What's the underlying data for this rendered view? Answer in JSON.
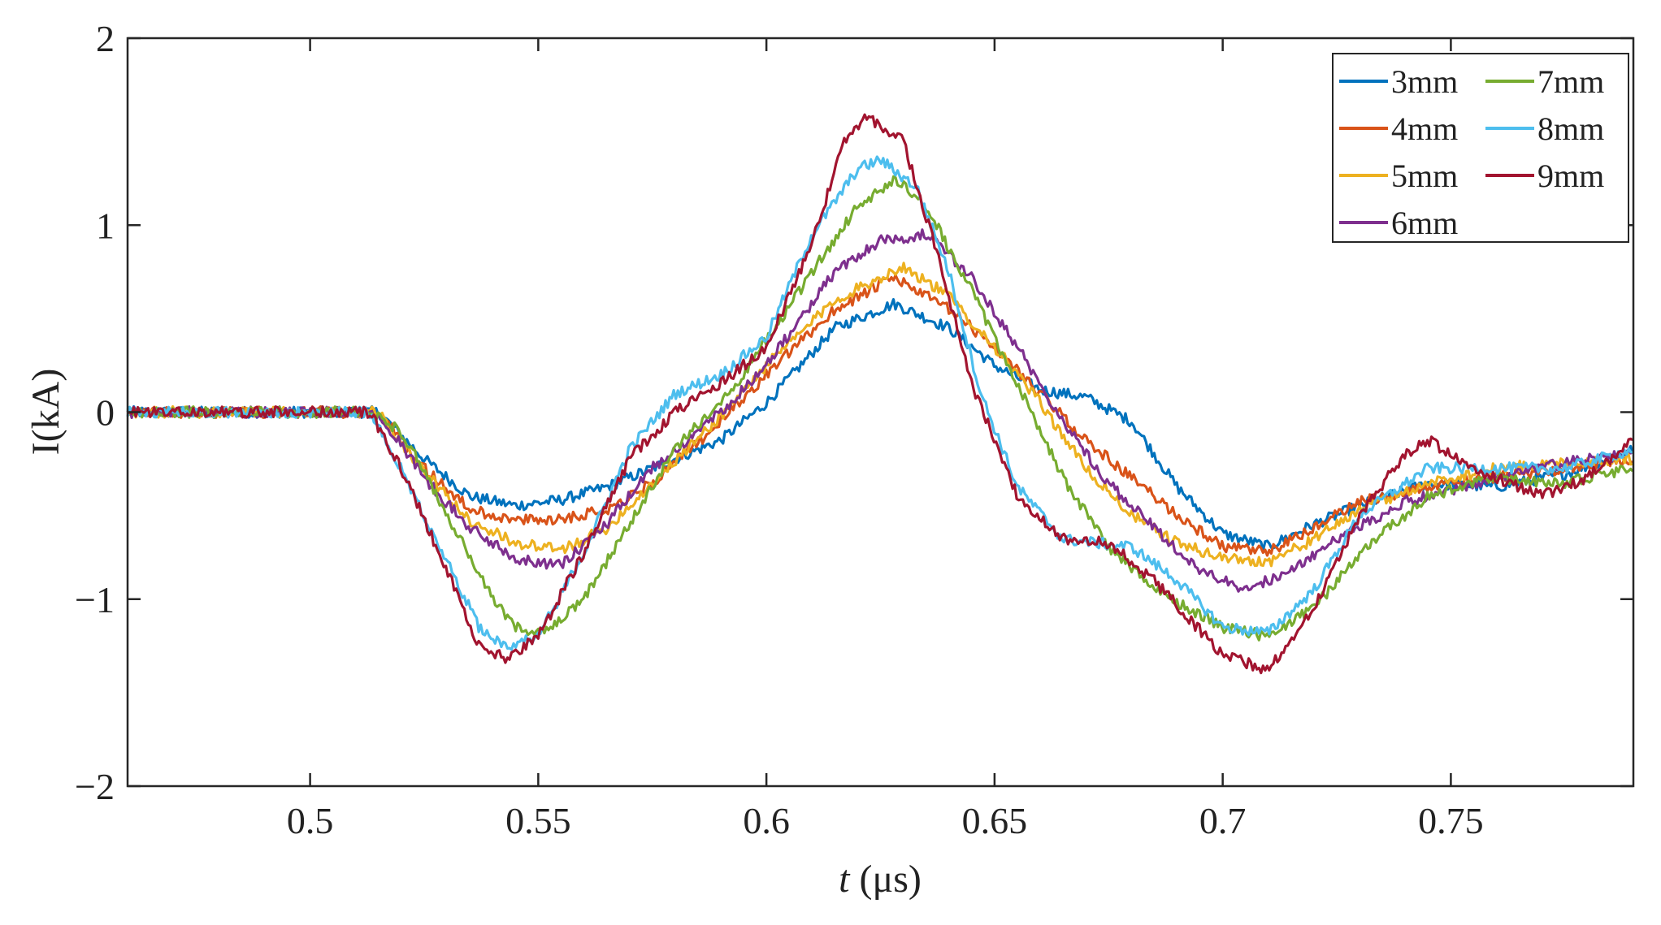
{
  "chart_data": {
    "type": "line",
    "title": "",
    "xlabel_var": "t",
    "xlabel_unit": " (μs)",
    "ylabel": "I(kA)",
    "xlim": [
      0.46,
      0.79
    ],
    "ylim": [
      -2,
      2
    ],
    "x_ticks": [
      0.5,
      0.55,
      0.6,
      0.65,
      0.7,
      0.75
    ],
    "x_tick_labels": [
      "0.5",
      "0.55",
      "0.6",
      "0.65",
      "0.7",
      "0.75"
    ],
    "y_ticks": [
      -2,
      -1,
      0,
      1,
      2
    ],
    "y_tick_labels": [
      "−2",
      "−1",
      "0",
      "1",
      "2"
    ],
    "grid": false,
    "legend_position": "top-right",
    "series": [
      {
        "name": "3mm",
        "color": "#0072BD",
        "points": [
          [
            0.46,
            0
          ],
          [
            0.515,
            0
          ],
          [
            0.525,
            -0.25
          ],
          [
            0.535,
            -0.45
          ],
          [
            0.545,
            -0.5
          ],
          [
            0.555,
            -0.47
          ],
          [
            0.565,
            -0.4
          ],
          [
            0.575,
            -0.3
          ],
          [
            0.59,
            -0.15
          ],
          [
            0.6,
            0.05
          ],
          [
            0.615,
            0.45
          ],
          [
            0.628,
            0.58
          ],
          [
            0.64,
            0.45
          ],
          [
            0.65,
            0.25
          ],
          [
            0.66,
            0.12
          ],
          [
            0.67,
            0.08
          ],
          [
            0.68,
            -0.05
          ],
          [
            0.69,
            -0.4
          ],
          [
            0.7,
            -0.65
          ],
          [
            0.71,
            -0.72
          ],
          [
            0.72,
            -0.6
          ],
          [
            0.73,
            -0.5
          ],
          [
            0.745,
            -0.38
          ],
          [
            0.76,
            -0.4
          ],
          [
            0.775,
            -0.33
          ],
          [
            0.79,
            -0.2
          ]
        ]
      },
      {
        "name": "4mm",
        "color": "#D95319",
        "points": [
          [
            0.46,
            0
          ],
          [
            0.515,
            0
          ],
          [
            0.525,
            -0.3
          ],
          [
            0.535,
            -0.52
          ],
          [
            0.545,
            -0.58
          ],
          [
            0.555,
            -0.57
          ],
          [
            0.565,
            -0.52
          ],
          [
            0.575,
            -0.38
          ],
          [
            0.59,
            -0.05
          ],
          [
            0.6,
            0.2
          ],
          [
            0.615,
            0.55
          ],
          [
            0.628,
            0.72
          ],
          [
            0.64,
            0.55
          ],
          [
            0.65,
            0.35
          ],
          [
            0.66,
            0.1
          ],
          [
            0.67,
            -0.15
          ],
          [
            0.68,
            -0.35
          ],
          [
            0.69,
            -0.55
          ],
          [
            0.7,
            -0.72
          ],
          [
            0.71,
            -0.75
          ],
          [
            0.72,
            -0.62
          ],
          [
            0.73,
            -0.48
          ],
          [
            0.745,
            -0.4
          ],
          [
            0.76,
            -0.35
          ],
          [
            0.775,
            -0.3
          ],
          [
            0.79,
            -0.25
          ]
        ]
      },
      {
        "name": "5mm",
        "color": "#EDB120",
        "points": [
          [
            0.46,
            0
          ],
          [
            0.515,
            0
          ],
          [
            0.525,
            -0.32
          ],
          [
            0.535,
            -0.58
          ],
          [
            0.545,
            -0.7
          ],
          [
            0.555,
            -0.74
          ],
          [
            0.565,
            -0.62
          ],
          [
            0.575,
            -0.38
          ],
          [
            0.59,
            -0.02
          ],
          [
            0.6,
            0.25
          ],
          [
            0.615,
            0.6
          ],
          [
            0.63,
            0.78
          ],
          [
            0.64,
            0.62
          ],
          [
            0.65,
            0.35
          ],
          [
            0.66,
            0.05
          ],
          [
            0.67,
            -0.3
          ],
          [
            0.68,
            -0.55
          ],
          [
            0.69,
            -0.7
          ],
          [
            0.7,
            -0.78
          ],
          [
            0.71,
            -0.8
          ],
          [
            0.72,
            -0.68
          ],
          [
            0.73,
            -0.52
          ],
          [
            0.745,
            -0.38
          ],
          [
            0.76,
            -0.3
          ],
          [
            0.775,
            -0.27
          ],
          [
            0.79,
            -0.25
          ]
        ]
      },
      {
        "name": "6mm",
        "color": "#7E2F8E",
        "points": [
          [
            0.46,
            0
          ],
          [
            0.515,
            0
          ],
          [
            0.525,
            -0.35
          ],
          [
            0.535,
            -0.62
          ],
          [
            0.545,
            -0.78
          ],
          [
            0.555,
            -0.82
          ],
          [
            0.565,
            -0.6
          ],
          [
            0.575,
            -0.3
          ],
          [
            0.59,
            0
          ],
          [
            0.6,
            0.25
          ],
          [
            0.615,
            0.75
          ],
          [
            0.625,
            0.92
          ],
          [
            0.635,
            0.95
          ],
          [
            0.645,
            0.72
          ],
          [
            0.655,
            0.35
          ],
          [
            0.665,
            -0.05
          ],
          [
            0.675,
            -0.38
          ],
          [
            0.685,
            -0.62
          ],
          [
            0.695,
            -0.85
          ],
          [
            0.705,
            -0.95
          ],
          [
            0.715,
            -0.85
          ],
          [
            0.725,
            -0.68
          ],
          [
            0.74,
            -0.48
          ],
          [
            0.76,
            -0.35
          ],
          [
            0.775,
            -0.27
          ],
          [
            0.79,
            -0.22
          ]
        ]
      },
      {
        "name": "7mm",
        "color": "#77AC30",
        "points": [
          [
            0.46,
            0
          ],
          [
            0.513,
            0
          ],
          [
            0.52,
            -0.1
          ],
          [
            0.53,
            -0.55
          ],
          [
            0.54,
            -1.0
          ],
          [
            0.545,
            -1.15
          ],
          [
            0.552,
            -1.18
          ],
          [
            0.56,
            -1.0
          ],
          [
            0.57,
            -0.6
          ],
          [
            0.58,
            -0.2
          ],
          [
            0.595,
            0.2
          ],
          [
            0.61,
            0.75
          ],
          [
            0.62,
            1.1
          ],
          [
            0.628,
            1.25
          ],
          [
            0.635,
            1.1
          ],
          [
            0.645,
            0.65
          ],
          [
            0.655,
            0.15
          ],
          [
            0.665,
            -0.35
          ],
          [
            0.675,
            -0.72
          ],
          [
            0.685,
            -0.95
          ],
          [
            0.7,
            -1.15
          ],
          [
            0.71,
            -1.2
          ],
          [
            0.72,
            -1.05
          ],
          [
            0.73,
            -0.75
          ],
          [
            0.745,
            -0.45
          ],
          [
            0.76,
            -0.35
          ],
          [
            0.775,
            -0.38
          ],
          [
            0.79,
            -0.3
          ]
        ]
      },
      {
        "name": "8mm",
        "color": "#4DBEEE",
        "points": [
          [
            0.46,
            0
          ],
          [
            0.513,
            0
          ],
          [
            0.52,
            -0.3
          ],
          [
            0.53,
            -0.8
          ],
          [
            0.537,
            -1.15
          ],
          [
            0.543,
            -1.25
          ],
          [
            0.55,
            -1.2
          ],
          [
            0.56,
            -0.75
          ],
          [
            0.57,
            -0.2
          ],
          [
            0.58,
            0.1
          ],
          [
            0.59,
            0.2
          ],
          [
            0.6,
            0.4
          ],
          [
            0.61,
            0.95
          ],
          [
            0.62,
            1.3
          ],
          [
            0.625,
            1.35
          ],
          [
            0.633,
            1.2
          ],
          [
            0.64,
            0.75
          ],
          [
            0.647,
            0.1
          ],
          [
            0.655,
            -0.4
          ],
          [
            0.665,
            -0.68
          ],
          [
            0.68,
            -0.72
          ],
          [
            0.69,
            -0.9
          ],
          [
            0.7,
            -1.15
          ],
          [
            0.71,
            -1.18
          ],
          [
            0.72,
            -0.95
          ],
          [
            0.73,
            -0.55
          ],
          [
            0.745,
            -0.3
          ],
          [
            0.76,
            -0.3
          ],
          [
            0.775,
            -0.3
          ],
          [
            0.79,
            -0.2
          ]
        ]
      },
      {
        "name": "9mm",
        "color": "#A2142F",
        "points": [
          [
            0.46,
            0
          ],
          [
            0.513,
            0
          ],
          [
            0.52,
            -0.3
          ],
          [
            0.53,
            -0.85
          ],
          [
            0.537,
            -1.25
          ],
          [
            0.543,
            -1.32
          ],
          [
            0.55,
            -1.2
          ],
          [
            0.56,
            -0.75
          ],
          [
            0.57,
            -0.25
          ],
          [
            0.58,
            0
          ],
          [
            0.59,
            0.15
          ],
          [
            0.6,
            0.35
          ],
          [
            0.61,
            0.9
          ],
          [
            0.617,
            1.45
          ],
          [
            0.622,
            1.58
          ],
          [
            0.63,
            1.45
          ],
          [
            0.638,
            0.8
          ],
          [
            0.645,
            0.15
          ],
          [
            0.655,
            -0.45
          ],
          [
            0.665,
            -0.68
          ],
          [
            0.675,
            -0.7
          ],
          [
            0.685,
            -0.9
          ],
          [
            0.7,
            -1.3
          ],
          [
            0.71,
            -1.38
          ],
          [
            0.72,
            -1.05
          ],
          [
            0.73,
            -0.55
          ],
          [
            0.74,
            -0.22
          ],
          [
            0.745,
            -0.15
          ],
          [
            0.755,
            -0.3
          ],
          [
            0.77,
            -0.45
          ],
          [
            0.78,
            -0.35
          ],
          [
            0.79,
            -0.15
          ]
        ]
      }
    ]
  }
}
